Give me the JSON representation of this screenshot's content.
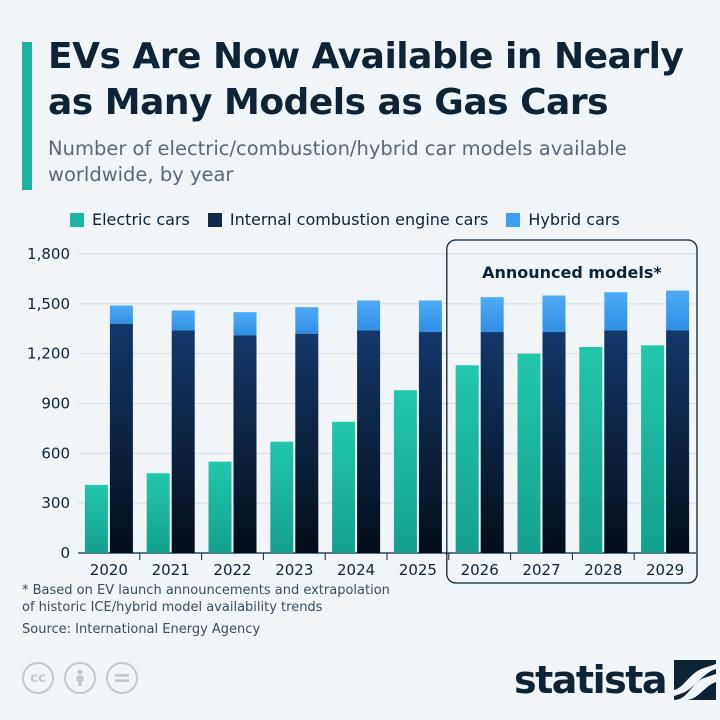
{
  "header": {
    "title": "EVs Are Now Available in Nearly as Many Models as Gas Cars",
    "subtitle": "Number of electric/combustion/hybrid car models available worldwide, by year"
  },
  "colors": {
    "accent": "#1cb6a0",
    "electric": "#1cb6a0",
    "ice": "#0e2a4d",
    "hybrid": "#3d9ef0"
  },
  "chart_data": {
    "type": "bar",
    "categories": [
      "2020",
      "2021",
      "2022",
      "2023",
      "2024",
      "2025",
      "2026",
      "2027",
      "2028",
      "2029"
    ],
    "series": [
      {
        "name": "Electric cars",
        "values": [
          410,
          480,
          550,
          670,
          790,
          980,
          1130,
          1200,
          1240,
          1250
        ]
      },
      {
        "name": "Internal combustion engine cars",
        "values": [
          1380,
          1340,
          1310,
          1320,
          1340,
          1330,
          1330,
          1330,
          1340,
          1340
        ]
      },
      {
        "name": "Hybrid cars",
        "values": [
          1490,
          1460,
          1450,
          1480,
          1520,
          1520,
          1540,
          1550,
          1570,
          1580
        ]
      }
    ],
    "yticks": [
      "0",
      "300",
      "600",
      "900",
      "1,200",
      "1,500",
      "1,800"
    ],
    "ylim": [
      0,
      1800
    ],
    "grid": true,
    "legend": "top",
    "annotation": {
      "label": "Announced models*",
      "applies_to": [
        "2026",
        "2027",
        "2028",
        "2029"
      ]
    }
  },
  "footnote": "* Based on EV launch announcements and extrapolation\n  of historic ICE/hybrid model availability trends",
  "source": "Source: International Energy Agency",
  "license_icons": [
    "creative-commons-icon",
    "attribution-icon",
    "no-derivatives-icon"
  ],
  "brand": {
    "name": "statista"
  }
}
